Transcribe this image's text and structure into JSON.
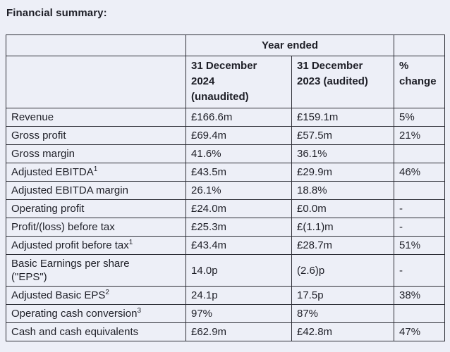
{
  "page": {
    "title": "Financial summary:"
  },
  "colors": {
    "background": "#edeff7",
    "text": "#1e1f27",
    "border": "#2c2d35"
  },
  "table": {
    "header": {
      "year_ended": "Year ended",
      "col_2024": "31 December\n2024\n(unaudited)",
      "col_2023": "31 December\n2023 (audited)",
      "col_change": "%\nchange"
    },
    "rows": [
      {
        "label": "Revenue",
        "sup": "",
        "y2024": "£166.6m",
        "y2023": "£159.1m",
        "change": "5%"
      },
      {
        "label": "Gross profit",
        "sup": "",
        "y2024": "£69.4m",
        "y2023": "£57.5m",
        "change": "21%"
      },
      {
        "label": "Gross margin",
        "sup": "",
        "y2024": "41.6%",
        "y2023": "36.1%",
        "change": ""
      },
      {
        "label": "Adjusted EBITDA",
        "sup": "1",
        "y2024": "£43.5m",
        "y2023": "£29.9m",
        "change": "46%"
      },
      {
        "label": "Adjusted EBITDA margin",
        "sup": "",
        "y2024": "26.1%",
        "y2023": "18.8%",
        "change": ""
      },
      {
        "label": "Operating profit",
        "sup": "",
        "y2024": "£24.0m",
        "y2023": "£0.0m",
        "change": "-"
      },
      {
        "label": "Profit/(loss) before tax",
        "sup": "",
        "y2024": "£25.3m",
        "y2023": "£(1.1)m",
        "change": "-"
      },
      {
        "label": "Adjusted profit before tax",
        "sup": "1",
        "y2024": "£43.4m",
        "y2023": "£28.7m",
        "change": "51%"
      },
      {
        "label": "Basic Earnings per share\n(\"EPS\")",
        "sup": "",
        "y2024": "14.0p",
        "y2023": "(2.6)p",
        "change": "-"
      },
      {
        "label": "Adjusted Basic EPS",
        "sup": "2",
        "y2024": "24.1p",
        "y2023": "17.5p",
        "change": "38%"
      },
      {
        "label": "Operating cash conversion",
        "sup": "3",
        "y2024": "97%",
        "y2023": "87%",
        "change": ""
      },
      {
        "label": "Cash and cash equivalents",
        "sup": "",
        "y2024": "£62.9m",
        "y2023": "£42.8m",
        "change": "47%"
      }
    ]
  }
}
